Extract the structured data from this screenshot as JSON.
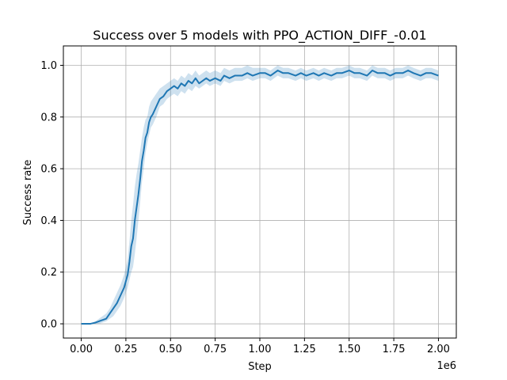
{
  "chart_data": {
    "type": "line",
    "title": "Success over 5 models with PPO_ACTION_DIFF_-0.01",
    "xlabel": "Step",
    "ylabel": "Success rate",
    "x_offset_label": "1e6",
    "xlim": [
      -0.1,
      2.1
    ],
    "ylim": [
      -0.055,
      1.075
    ],
    "grid": true,
    "x_ticks": [
      0.0,
      0.25,
      0.5,
      0.75,
      1.0,
      1.25,
      1.5,
      1.75,
      2.0
    ],
    "x_tick_labels": [
      "0.00",
      "0.25",
      "0.50",
      "0.75",
      "1.00",
      "1.25",
      "1.50",
      "1.75",
      "2.00"
    ],
    "y_ticks": [
      0.0,
      0.2,
      0.4,
      0.6,
      0.8,
      1.0
    ],
    "y_tick_labels": [
      "0.0",
      "0.2",
      "0.4",
      "0.6",
      "0.8",
      "1.0"
    ],
    "line_color": "#1f77b4",
    "band_color": "#1f77b4",
    "series": [
      {
        "x": [
          0.0,
          0.05,
          0.08,
          0.1,
          0.12,
          0.14,
          0.16,
          0.18,
          0.2,
          0.22,
          0.24,
          0.26,
          0.27,
          0.28,
          0.29,
          0.3,
          0.31,
          0.32,
          0.33,
          0.34,
          0.35,
          0.36,
          0.37,
          0.38,
          0.39,
          0.4,
          0.42,
          0.44,
          0.46,
          0.48,
          0.5,
          0.52,
          0.54,
          0.56,
          0.58,
          0.6,
          0.62,
          0.64,
          0.66,
          0.68,
          0.7,
          0.72,
          0.75,
          0.78,
          0.8,
          0.83,
          0.86,
          0.9,
          0.93,
          0.96,
          1.0,
          1.03,
          1.06,
          1.1,
          1.13,
          1.16,
          1.2,
          1.23,
          1.26,
          1.3,
          1.33,
          1.36,
          1.4,
          1.43,
          1.46,
          1.5,
          1.53,
          1.56,
          1.6,
          1.63,
          1.66,
          1.7,
          1.73,
          1.76,
          1.8,
          1.83,
          1.86,
          1.9,
          1.93,
          1.96,
          2.0
        ],
        "y": [
          0.0,
          0.0,
          0.005,
          0.01,
          0.015,
          0.02,
          0.04,
          0.06,
          0.08,
          0.11,
          0.14,
          0.19,
          0.24,
          0.3,
          0.33,
          0.4,
          0.45,
          0.5,
          0.56,
          0.63,
          0.67,
          0.72,
          0.74,
          0.78,
          0.8,
          0.81,
          0.84,
          0.87,
          0.88,
          0.9,
          0.91,
          0.92,
          0.91,
          0.93,
          0.92,
          0.94,
          0.93,
          0.95,
          0.93,
          0.94,
          0.95,
          0.94,
          0.95,
          0.94,
          0.96,
          0.95,
          0.96,
          0.96,
          0.97,
          0.96,
          0.97,
          0.97,
          0.96,
          0.98,
          0.97,
          0.97,
          0.96,
          0.97,
          0.96,
          0.97,
          0.96,
          0.97,
          0.96,
          0.97,
          0.97,
          0.98,
          0.97,
          0.97,
          0.96,
          0.98,
          0.97,
          0.97,
          0.96,
          0.97,
          0.97,
          0.98,
          0.97,
          0.96,
          0.97,
          0.97,
          0.96
        ],
        "lower": [
          0.0,
          0.0,
          0.0,
          0.0,
          0.005,
          0.01,
          0.02,
          0.03,
          0.05,
          0.07,
          0.1,
          0.14,
          0.17,
          0.2,
          0.22,
          0.27,
          0.33,
          0.4,
          0.47,
          0.55,
          0.6,
          0.66,
          0.7,
          0.73,
          0.76,
          0.77,
          0.8,
          0.84,
          0.85,
          0.87,
          0.88,
          0.89,
          0.88,
          0.9,
          0.89,
          0.91,
          0.9,
          0.92,
          0.91,
          0.92,
          0.93,
          0.92,
          0.93,
          0.92,
          0.94,
          0.93,
          0.94,
          0.94,
          0.95,
          0.94,
          0.95,
          0.95,
          0.94,
          0.96,
          0.95,
          0.95,
          0.94,
          0.95,
          0.94,
          0.95,
          0.94,
          0.95,
          0.94,
          0.95,
          0.95,
          0.96,
          0.95,
          0.95,
          0.94,
          0.96,
          0.95,
          0.95,
          0.94,
          0.95,
          0.95,
          0.96,
          0.95,
          0.94,
          0.95,
          0.95,
          0.94
        ],
        "upper": [
          0.0,
          0.0,
          0.01,
          0.02,
          0.03,
          0.04,
          0.06,
          0.09,
          0.12,
          0.15,
          0.19,
          0.25,
          0.32,
          0.4,
          0.46,
          0.53,
          0.58,
          0.62,
          0.67,
          0.72,
          0.76,
          0.79,
          0.8,
          0.84,
          0.86,
          0.87,
          0.89,
          0.91,
          0.92,
          0.93,
          0.94,
          0.95,
          0.94,
          0.96,
          0.95,
          0.97,
          0.96,
          0.98,
          0.96,
          0.97,
          0.98,
          0.97,
          0.98,
          0.97,
          0.99,
          0.98,
          0.99,
          0.99,
          1.0,
          0.99,
          0.99,
          0.99,
          0.98,
          1.0,
          0.99,
          0.99,
          0.98,
          0.99,
          0.98,
          0.99,
          0.98,
          0.99,
          0.98,
          0.99,
          0.99,
          1.0,
          0.99,
          0.99,
          0.98,
          1.0,
          0.99,
          0.99,
          0.98,
          0.99,
          0.99,
          1.0,
          0.99,
          0.98,
          0.99,
          0.99,
          0.98
        ]
      }
    ]
  }
}
